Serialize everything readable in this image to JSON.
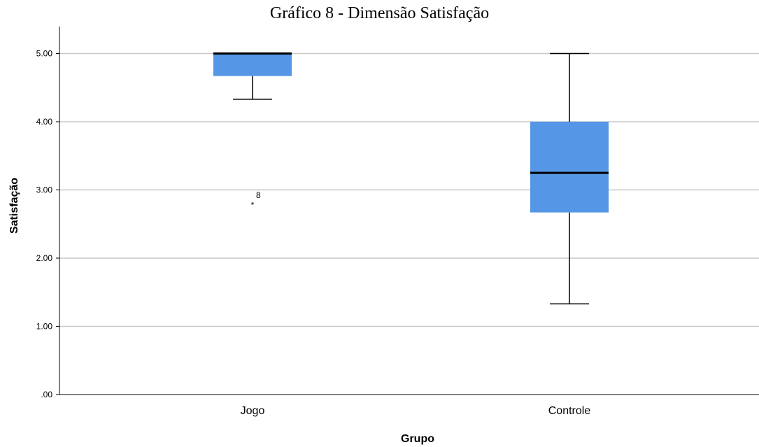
{
  "chart_data": {
    "type": "boxplot",
    "title": "Gráfico 8 - Dimensão Satisfação",
    "xlabel": "Grupo",
    "ylabel": "Satisfação",
    "ylim": [
      0,
      5.4
    ],
    "yticks": [
      0,
      1,
      2,
      3,
      4,
      5
    ],
    "ytick_labels": [
      ".00",
      "1.00",
      "2.00",
      "3.00",
      "4.00",
      "5.00"
    ],
    "grid": "horizontal",
    "categories": [
      "Jogo",
      "Controle"
    ],
    "series": [
      {
        "category": "Jogo",
        "whisker_low": 4.33,
        "q1": 4.67,
        "median": 5.0,
        "q3": 5.0,
        "whisker_high": 5.0,
        "outliers": [
          {
            "value": 2.83,
            "label": "8",
            "marker": "*"
          }
        ]
      },
      {
        "category": "Controle",
        "whisker_low": 1.33,
        "q1": 2.67,
        "median": 3.25,
        "q3": 4.0,
        "whisker_high": 5.0,
        "outliers": []
      }
    ],
    "colors": {
      "box": "#5596E6",
      "grid": "#C8C8C8",
      "line": "#000000"
    }
  }
}
